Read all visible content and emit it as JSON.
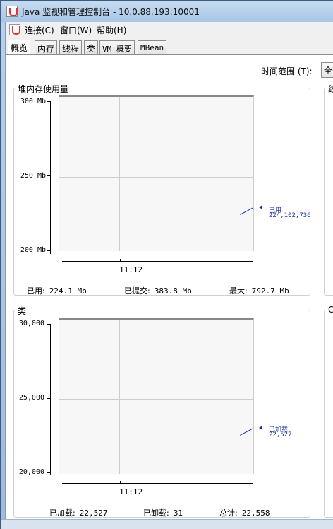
{
  "window": {
    "title": "Java 监视和管理控制台 - 10.0.88.193:10001"
  },
  "menu": {
    "items": [
      "连接(C)",
      "窗口(W)",
      "帮助(H)"
    ]
  },
  "tabs": [
    "概览",
    "内存",
    "线程",
    "类",
    "VM 概要",
    "MBean"
  ],
  "time_range": {
    "label": "时间范围 (T):",
    "value": "全部"
  },
  "right_panels": {
    "top_title": "线",
    "bottom_title": "CI"
  },
  "colors": {
    "series": "#1b2fa8",
    "plot_bg": "#f7f7f7",
    "grid": "#cdcdcd",
    "titlebar": "#b9d1ea"
  },
  "chart_data": [
    {
      "type": "line",
      "title": "堆内存使用量",
      "y_tick_labels": [
        "300 Mb",
        "250 Mb",
        "200 Mb"
      ],
      "x_tick_labels": [
        "11:12"
      ],
      "ylim": [
        200,
        300
      ],
      "grid": true,
      "series": [
        {
          "name": "已用",
          "value_label": "224,102,736",
          "values": [
            224.1
          ]
        }
      ],
      "stats": [
        {
          "label": "已用:",
          "value": "224.1  Mb"
        },
        {
          "label": "已提交:",
          "value": "383.8  Mb"
        },
        {
          "label": "最大:",
          "value": "792.7  Mb"
        }
      ]
    },
    {
      "type": "line",
      "title": "类",
      "y_tick_labels": [
        "30,000",
        "25,000",
        "20,000"
      ],
      "x_tick_labels": [
        "11:12"
      ],
      "ylim": [
        20000,
        30000
      ],
      "grid": true,
      "series": [
        {
          "name": "已加载",
          "value_label": "22,527",
          "values": [
            22527
          ]
        }
      ],
      "stats": [
        {
          "label": "已加载:",
          "value": "22,527"
        },
        {
          "label": "已卸载:",
          "value": "31"
        },
        {
          "label": "总计:",
          "value": "22,558"
        }
      ]
    }
  ]
}
